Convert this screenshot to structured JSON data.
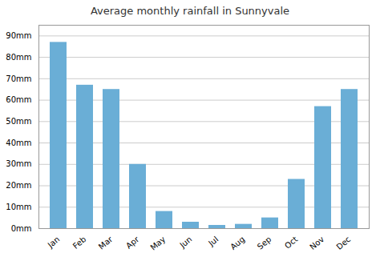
{
  "chart_data": {
    "type": "bar",
    "title": "Average monthly rainfall in Sunnyvale",
    "categories": [
      "Jan",
      "Feb",
      "Mar",
      "Apr",
      "May",
      "Jun",
      "Jul",
      "Aug",
      "Sep",
      "Oct",
      "Nov",
      "Dec"
    ],
    "values": [
      87,
      67,
      65,
      30,
      8,
      3,
      1.5,
      2,
      5,
      23,
      57,
      65
    ],
    "color": "#6aaed6",
    "ylim": [
      0,
      95
    ],
    "yticks": [
      {
        "value": 0,
        "label": "0mm"
      },
      {
        "value": 10,
        "label": "10mm"
      },
      {
        "value": 20,
        "label": "20mm"
      },
      {
        "value": 30,
        "label": "30mm"
      },
      {
        "value": 40,
        "label": "40mm"
      },
      {
        "value": 50,
        "label": "50mm"
      },
      {
        "value": 60,
        "label": "60mm"
      },
      {
        "value": 70,
        "label": "70mm"
      },
      {
        "value": 80,
        "label": "80mm"
      },
      {
        "value": 90,
        "label": "90mm"
      }
    ],
    "grid": true
  }
}
